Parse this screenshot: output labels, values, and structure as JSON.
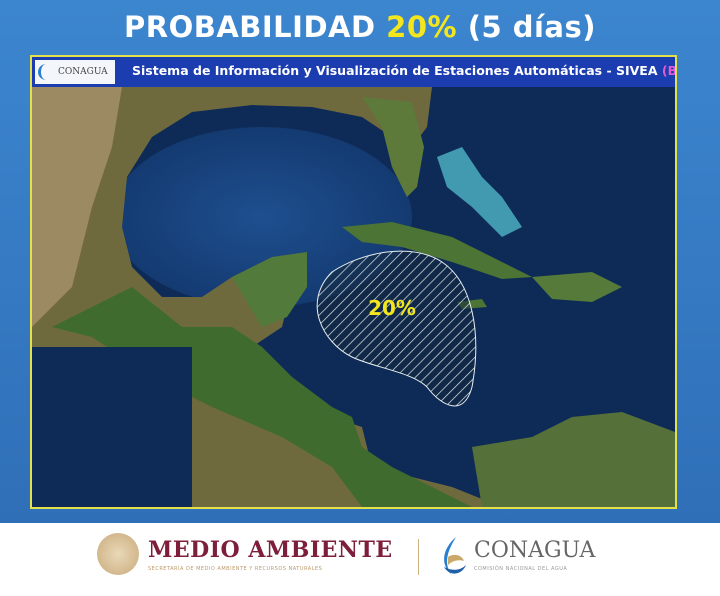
{
  "header": {
    "prefix": "PROBABILIDAD",
    "percent": "20%",
    "suffix": "(5 días)"
  },
  "map": {
    "logo_text": "CONAGUA",
    "title": "Sistema de Información y Visualización de Estaciones Automáticas - SIVEA",
    "beta": "(BETA)",
    "zone_label": "20%",
    "zone_probability_percent": 20,
    "colors": {
      "frame": "#e3e04a",
      "zone_label": "#f4e61c",
      "bar": "#1b3db0"
    }
  },
  "footer": {
    "medio_ambiente": "MEDIO AMBIENTE",
    "medio_ambiente_sub": "SECRETARÍA DE MEDIO AMBIENTE Y RECURSOS NATURALES",
    "conagua": "CONAGUA",
    "conagua_sub": "COMISIÓN NACIONAL DEL AGUA"
  }
}
